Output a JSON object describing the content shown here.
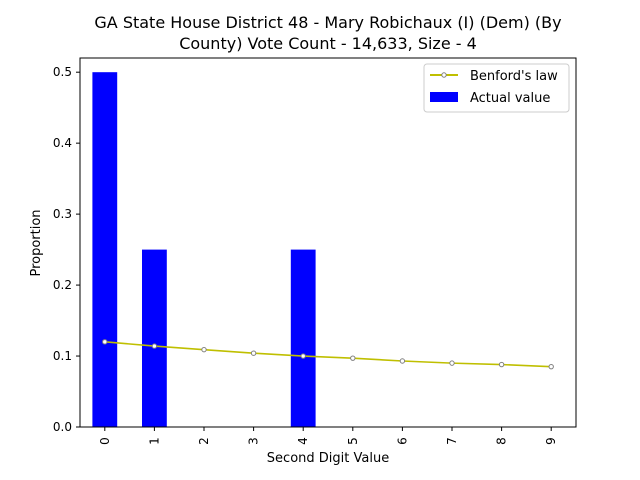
{
  "chart_data": {
    "type": "bar",
    "title_lines": [
      "GA State House District 48 - Mary Robichaux (I) (Dem) (By",
      "County) Vote Count - 14,633, Size - 4"
    ],
    "xlabel": "Second Digit Value",
    "ylabel": "Proportion",
    "categories": [
      "0",
      "1",
      "2",
      "3",
      "4",
      "5",
      "6",
      "7",
      "8",
      "9"
    ],
    "xlim": [
      -0.5,
      9.5
    ],
    "ylim": [
      0,
      0.52
    ],
    "yticks": [
      "0.0",
      "0.1",
      "0.2",
      "0.3",
      "0.4",
      "0.5"
    ],
    "grid": false,
    "legend_position": "top-right",
    "series": [
      {
        "name": "Actual value",
        "kind": "bar",
        "color": "#0000ff",
        "values": [
          0.5,
          0.25,
          0,
          0,
          0.25,
          0,
          0,
          0,
          0,
          0
        ]
      },
      {
        "name": "Benford's law",
        "kind": "line",
        "color": "#bfbf00",
        "marker_color": "#808080",
        "values": [
          0.12,
          0.114,
          0.109,
          0.104,
          0.1,
          0.097,
          0.093,
          0.09,
          0.088,
          0.085
        ]
      }
    ]
  }
}
